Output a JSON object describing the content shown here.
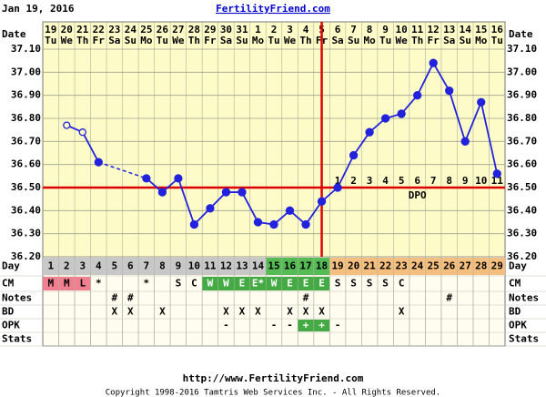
{
  "header": {
    "date": "Jan 19, 2016",
    "site": "FertilityFriend.com"
  },
  "chart_data": {
    "type": "line",
    "date_label": "Date",
    "dates": [
      "19",
      "20",
      "21",
      "22",
      "23",
      "24",
      "25",
      "26",
      "27",
      "28",
      "29",
      "30",
      "31",
      "1",
      "2",
      "3",
      "4",
      "5",
      "6",
      "7",
      "8",
      "9",
      "10",
      "11",
      "12",
      "13",
      "14",
      "15",
      "16"
    ],
    "weekdays": [
      "Tu",
      "We",
      "Th",
      "Fr",
      "Sa",
      "Su",
      "Mo",
      "Tu",
      "We",
      "Th",
      "Fr",
      "Sa",
      "Su",
      "Mo",
      "Tu",
      "We",
      "Th",
      "Fr",
      "Sa",
      "Su",
      "Mo",
      "Tu",
      "We",
      "Th",
      "Fr",
      "Sa",
      "Su",
      "Mo",
      "Tu"
    ],
    "series": [
      {
        "color": "#2222dd",
        "values": [
          null,
          36.77,
          36.74,
          36.61,
          null,
          null,
          36.54,
          36.48,
          36.54,
          36.34,
          36.41,
          36.48,
          36.48,
          36.35,
          36.34,
          36.4,
          36.34,
          36.44,
          36.5,
          36.64,
          36.74,
          36.8,
          36.82,
          36.9,
          37.04,
          36.92,
          36.7,
          36.87,
          36.56
        ]
      }
    ],
    "hollow_days": [
      2,
      3
    ],
    "ylim": [
      36.2,
      37.1
    ],
    "yticks": [
      {
        "value": 36.2,
        "label": "36.20"
      },
      {
        "value": 36.3,
        "label": "36.30"
      },
      {
        "value": 36.4,
        "label": "36.40"
      },
      {
        "value": 36.5,
        "label": "36.50"
      },
      {
        "value": 36.6,
        "label": "36.60"
      },
      {
        "value": 36.7,
        "label": "36.70"
      },
      {
        "value": 36.8,
        "label": "36.80"
      },
      {
        "value": 36.9,
        "label": "36.90"
      },
      {
        "value": 37.0,
        "label": "37.00"
      },
      {
        "value": 37.1,
        "label": "37.10"
      }
    ],
    "coverline": 36.5,
    "ovulation_day": 18,
    "marker_color": "#dd0000",
    "dpo": [
      null,
      null,
      null,
      null,
      null,
      null,
      null,
      null,
      null,
      null,
      null,
      null,
      null,
      null,
      null,
      null,
      null,
      null,
      1,
      2,
      3,
      4,
      5,
      6,
      7,
      8,
      9,
      10,
      11
    ],
    "dpo_label": "DPO",
    "grid": true
  },
  "table": {
    "rows": [
      {
        "label": "Day",
        "cells": [
          1,
          2,
          3,
          4,
          5,
          6,
          7,
          8,
          9,
          10,
          11,
          12,
          13,
          14,
          15,
          16,
          17,
          18,
          19,
          20,
          21,
          22,
          23,
          24,
          25,
          26,
          27,
          28,
          29
        ],
        "highlight": [
          {
            "from": 1,
            "to": 14,
            "color": "#c8c8c8"
          },
          {
            "from": 15,
            "to": 18,
            "color": "#55bb55"
          },
          {
            "from": 19,
            "to": 29,
            "color": "#f5bf80"
          }
        ]
      },
      {
        "label": "CM",
        "cells": [
          "M",
          "M",
          "L",
          "*",
          null,
          null,
          "*",
          null,
          "S",
          "C",
          "W",
          "W",
          "E",
          "E*",
          "W",
          "E",
          "E",
          "E",
          "S",
          "S",
          "S",
          "S",
          "C",
          null,
          null,
          null,
          null,
          null,
          null
        ],
        "highlight": [
          {
            "from": 1,
            "to": 3,
            "color": "#f08090"
          },
          {
            "from": 11,
            "to": 18,
            "color": "#44aa44"
          }
        ]
      },
      {
        "label": "Notes",
        "cells": [
          null,
          null,
          null,
          null,
          "#",
          "#",
          null,
          null,
          null,
          null,
          null,
          null,
          null,
          null,
          null,
          null,
          "#",
          null,
          null,
          null,
          null,
          null,
          null,
          null,
          null,
          "#",
          null,
          null,
          null
        ],
        "highlight": []
      },
      {
        "label": "BD",
        "cells": [
          null,
          null,
          null,
          null,
          "X",
          "X",
          null,
          "X",
          null,
          null,
          null,
          "X",
          "X",
          "X",
          null,
          "X",
          "X",
          "X",
          null,
          null,
          null,
          null,
          "X",
          null,
          null,
          null,
          null,
          null,
          null
        ],
        "highlight": []
      },
      {
        "label": "OPK",
        "cells": [
          null,
          null,
          null,
          null,
          null,
          null,
          null,
          null,
          null,
          null,
          null,
          "-",
          null,
          null,
          "-",
          "-",
          "+",
          "+",
          "-",
          null,
          null,
          null,
          null,
          null,
          null,
          null,
          null,
          null,
          null
        ],
        "highlight": [
          {
            "from": 17,
            "to": 18,
            "color": "#44aa44"
          }
        ]
      },
      {
        "label": "Stats",
        "cells": [
          null,
          null,
          null,
          null,
          null,
          null,
          null,
          null,
          null,
          null,
          null,
          null,
          null,
          null,
          null,
          null,
          null,
          null,
          null,
          null,
          null,
          null,
          null,
          null,
          null,
          null,
          null,
          null,
          null
        ],
        "highlight": []
      }
    ]
  },
  "footer": {
    "url": "http://www.FertilityFriend.com",
    "copyright": "Copyright 1998-2016 Tamtris Web Services Inc. - All Rights Reserved."
  }
}
